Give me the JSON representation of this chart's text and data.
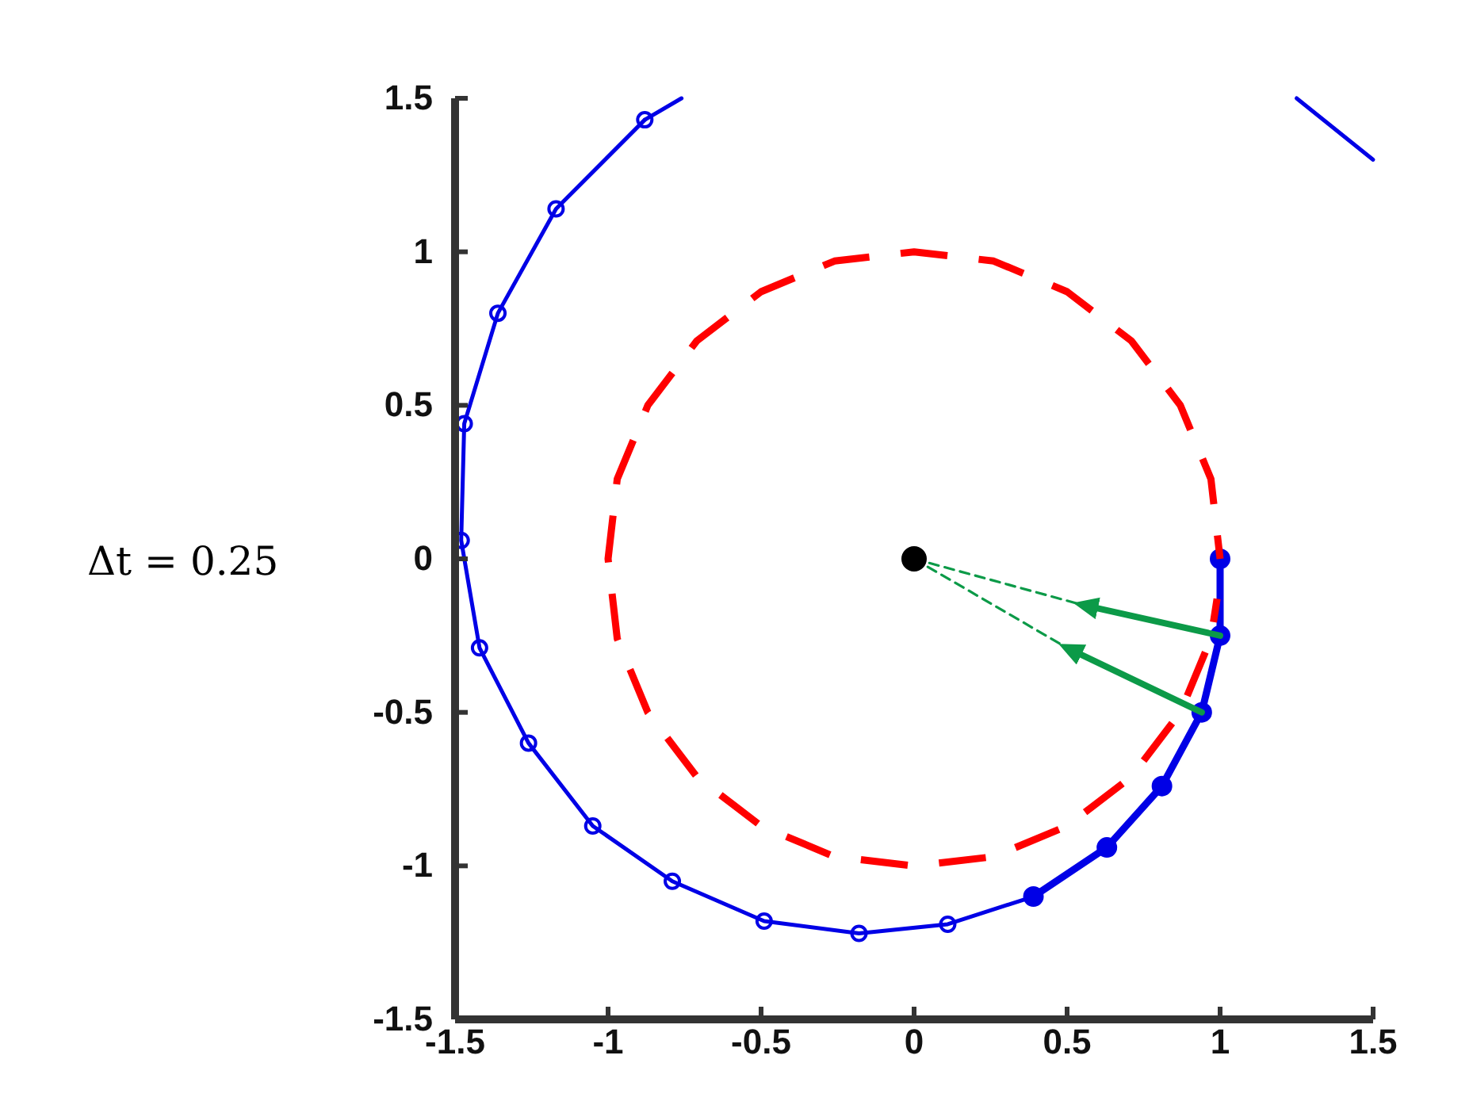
{
  "chart_data": {
    "type": "line",
    "xlim": [
      -1.5,
      1.5
    ],
    "ylim": [
      -1.5,
      1.5
    ],
    "xticks": [
      -1.5,
      -1,
      -0.5,
      0,
      0.5,
      1,
      1.5
    ],
    "yticks": [
      -1.5,
      -1,
      -0.5,
      0,
      0.5,
      1,
      1.5
    ],
    "grid": false,
    "annotations": [
      "Δt = 0.25"
    ],
    "series": [
      {
        "color": "#ff0000",
        "line_style": "dashed",
        "marker": "none",
        "x": [
          1,
          0.97,
          0.87,
          0.71,
          0.5,
          0.26,
          0,
          -0.26,
          -0.5,
          -0.71,
          -0.87,
          -0.97,
          -1,
          -0.97,
          -0.87,
          -0.71,
          -0.5,
          -0.26,
          0,
          0.26,
          0.5,
          0.71,
          0.87,
          0.97,
          0.99
        ],
        "values": [
          0,
          0.26,
          0.5,
          0.71,
          0.87,
          0.97,
          1,
          0.97,
          0.87,
          0.71,
          0.5,
          0.26,
          0,
          -0.26,
          -0.5,
          -0.71,
          -0.87,
          -0.97,
          -1,
          -0.97,
          -0.87,
          -0.71,
          -0.5,
          -0.26,
          -0.13
        ]
      },
      {
        "color": "#0000e6",
        "line_style": "solid",
        "marker": "circle",
        "x": [
          1,
          1,
          0.94,
          0.81,
          0.63,
          0.39,
          0.11,
          -0.18,
          -0.49,
          -0.79,
          -1.05,
          -1.26,
          -1.42,
          -1.48,
          -1.47,
          -1.36,
          -1.17,
          -0.88
        ],
        "values": [
          0,
          -0.25,
          -0.5,
          -0.74,
          -0.94,
          -1.1,
          -1.19,
          -1.22,
          -1.18,
          -1.05,
          -0.87,
          -0.6,
          -0.29,
          0.06,
          0.44,
          0.8,
          1.14,
          1.43
        ]
      },
      {
        "color": "#0000e6",
        "line_style": "solid",
        "marker": "none",
        "x": [
          -0.88,
          -0.76
        ],
        "values": [
          1.43,
          1.5
        ]
      },
      {
        "color": "#0000e6",
        "line_style": "solid",
        "marker": "none",
        "x": [
          1.25,
          1.5
        ],
        "values": [
          1.5,
          1.3
        ]
      },
      {
        "color": "#0000e6",
        "line_style": "solid",
        "marker": "circle",
        "x": [
          1,
          1,
          0.94,
          0.81,
          0.63,
          0.39
        ],
        "values": [
          0,
          -0.25,
          -0.5,
          -0.74,
          -0.94,
          -1.1
        ]
      },
      {
        "color": "#0c9a48",
        "line_style": "dashed",
        "marker": "none",
        "x": [
          0,
          0.55
        ],
        "values": [
          0,
          -0.15
        ]
      },
      {
        "color": "#0c9a48",
        "line_style": "dashed",
        "marker": "none",
        "x": [
          0,
          0.5
        ],
        "values": [
          0,
          -0.29
        ]
      },
      {
        "color": "#0c9a48",
        "line_style": "solid",
        "marker": "none",
        "x": [
          1,
          0.55
        ],
        "values": [
          -0.25,
          -0.15
        ]
      },
      {
        "color": "#0c9a48",
        "line_style": "solid",
        "marker": "none",
        "x": [
          0.94,
          0.5
        ],
        "values": [
          -0.5,
          -0.29
        ]
      },
      {
        "type": "scatter",
        "color": "#000000",
        "marker": "circle",
        "x": [
          0
        ],
        "values": [
          0
        ]
      }
    ]
  }
}
